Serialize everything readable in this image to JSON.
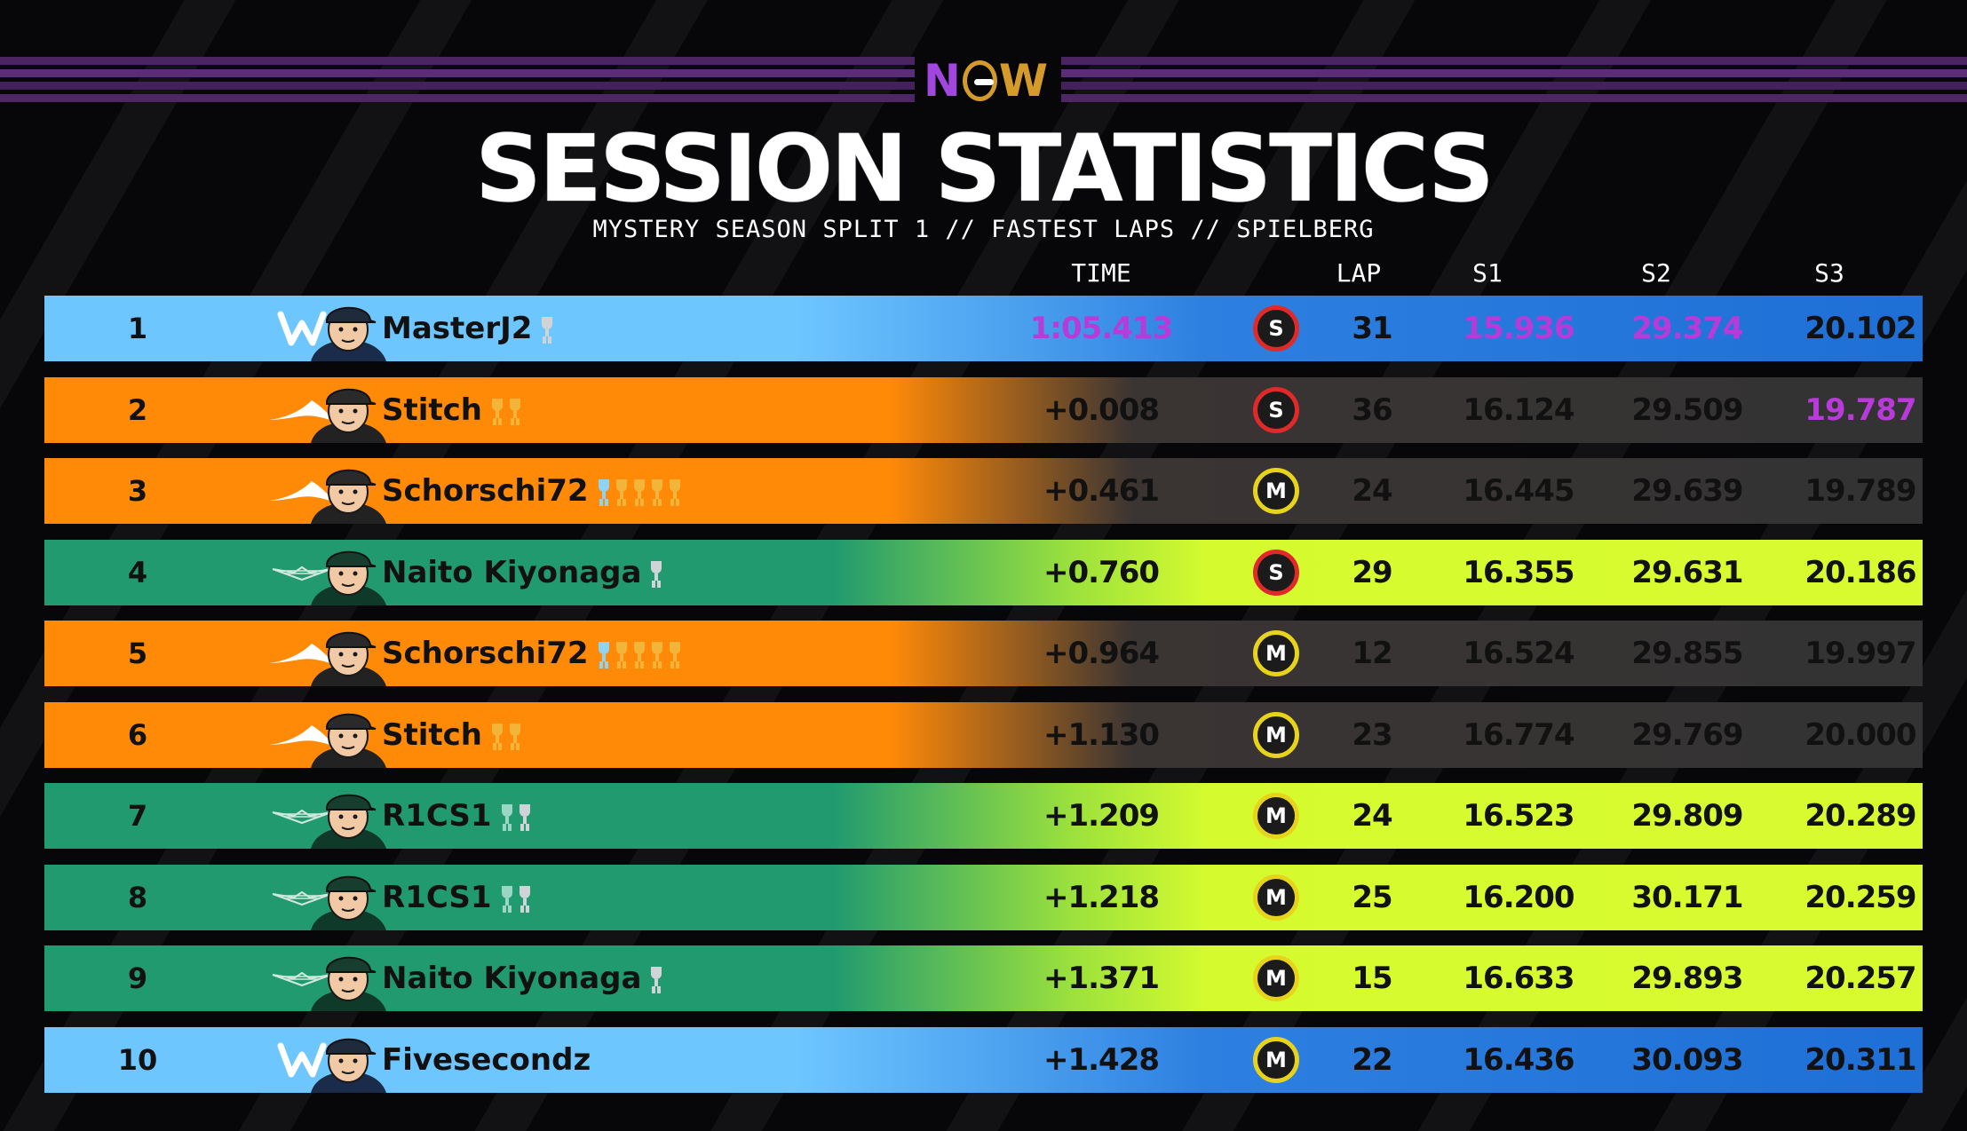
{
  "header": {
    "logo_text": "NOW",
    "title": "SESSION STATISTICS",
    "subtitle": "MYSTERY SEASON SPLIT 1 // FASTEST LAPS // SPIELBERG"
  },
  "columns": {
    "time": "TIME",
    "lap": "LAP",
    "s1": "S1",
    "s2": "S2",
    "s3": "S3"
  },
  "colors": {
    "williams": "#6ec6ff",
    "mclaren": "#ff8a08",
    "aston_martin": "#229a6f",
    "fastest_purple": "#b83ad9",
    "soft_tyre": "#e02a2a",
    "medium_tyre": "#e7d31c"
  },
  "rows": [
    {
      "pos": "1",
      "team": "williams",
      "team_icon": "williams-logo-icon",
      "name": "MasterJ2",
      "trophies": [
        "silver"
      ],
      "time": "1:05.413",
      "time_purple": true,
      "tyre": "S",
      "tyre_type": "soft",
      "lap": "31",
      "s1": "15.936",
      "s1_purple": true,
      "s2": "29.374",
      "s2_purple": true,
      "s3": "20.102",
      "s3_purple": false
    },
    {
      "pos": "2",
      "team": "mclaren",
      "team_icon": "mclaren-logo-icon",
      "name": "Stitch",
      "trophies": [
        "gold",
        "gold"
      ],
      "time": "+0.008",
      "time_purple": false,
      "tyre": "S",
      "tyre_type": "soft",
      "lap": "36",
      "s1": "16.124",
      "s1_purple": false,
      "s2": "29.509",
      "s2_purple": false,
      "s3": "19.787",
      "s3_purple": true
    },
    {
      "pos": "3",
      "team": "mclaren",
      "team_icon": "mclaren-logo-icon",
      "name": "Schorschi72",
      "trophies": [
        "blue",
        "gold",
        "gold",
        "gold",
        "gold"
      ],
      "time": "+0.461",
      "time_purple": false,
      "tyre": "M",
      "tyre_type": "medium",
      "lap": "24",
      "s1": "16.445",
      "s1_purple": false,
      "s2": "29.639",
      "s2_purple": false,
      "s3": "19.789",
      "s3_purple": false
    },
    {
      "pos": "4",
      "team": "aston",
      "team_icon": "aston-martin-logo-icon",
      "name": "Naito Kiyonaga",
      "trophies": [
        "silver"
      ],
      "time": "+0.760",
      "time_purple": false,
      "tyre": "S",
      "tyre_type": "soft",
      "lap": "29",
      "s1": "16.355",
      "s1_purple": false,
      "s2": "29.631",
      "s2_purple": false,
      "s3": "20.186",
      "s3_purple": false
    },
    {
      "pos": "5",
      "team": "mclaren",
      "team_icon": "mclaren-logo-icon",
      "name": "Schorschi72",
      "trophies": [
        "blue",
        "gold",
        "gold",
        "gold",
        "gold"
      ],
      "time": "+0.964",
      "time_purple": false,
      "tyre": "M",
      "tyre_type": "medium",
      "lap": "12",
      "s1": "16.524",
      "s1_purple": false,
      "s2": "29.855",
      "s2_purple": false,
      "s3": "19.997",
      "s3_purple": false
    },
    {
      "pos": "6",
      "team": "mclaren",
      "team_icon": "mclaren-logo-icon",
      "name": "Stitch",
      "trophies": [
        "gold",
        "gold"
      ],
      "time": "+1.130",
      "time_purple": false,
      "tyre": "M",
      "tyre_type": "medium",
      "lap": "23",
      "s1": "16.774",
      "s1_purple": false,
      "s2": "29.769",
      "s2_purple": false,
      "s3": "20.000",
      "s3_purple": false
    },
    {
      "pos": "7",
      "team": "aston",
      "team_icon": "aston-martin-logo-icon",
      "name": "R1CS1",
      "trophies": [
        "green",
        "silver"
      ],
      "time": "+1.209",
      "time_purple": false,
      "tyre": "M",
      "tyre_type": "medium",
      "lap": "24",
      "s1": "16.523",
      "s1_purple": false,
      "s2": "29.809",
      "s2_purple": false,
      "s3": "20.289",
      "s3_purple": false
    },
    {
      "pos": "8",
      "team": "aston",
      "team_icon": "aston-martin-logo-icon",
      "name": "R1CS1",
      "trophies": [
        "green",
        "silver"
      ],
      "time": "+1.218",
      "time_purple": false,
      "tyre": "M",
      "tyre_type": "medium",
      "lap": "25",
      "s1": "16.200",
      "s1_purple": false,
      "s2": "30.171",
      "s2_purple": false,
      "s3": "20.259",
      "s3_purple": false
    },
    {
      "pos": "9",
      "team": "aston",
      "team_icon": "aston-martin-logo-icon",
      "name": "Naito Kiyonaga",
      "trophies": [
        "silver"
      ],
      "time": "+1.371",
      "time_purple": false,
      "tyre": "M",
      "tyre_type": "medium",
      "lap": "15",
      "s1": "16.633",
      "s1_purple": false,
      "s2": "29.893",
      "s2_purple": false,
      "s3": "20.257",
      "s3_purple": false
    },
    {
      "pos": "10",
      "team": "williams",
      "team_icon": "williams-logo-icon",
      "name": "Fivesecondz",
      "trophies": [],
      "time": "+1.428",
      "time_purple": false,
      "tyre": "M",
      "tyre_type": "medium",
      "lap": "22",
      "s1": "16.436",
      "s1_purple": false,
      "s2": "30.093",
      "s2_purple": false,
      "s3": "20.311",
      "s3_purple": false
    }
  ]
}
